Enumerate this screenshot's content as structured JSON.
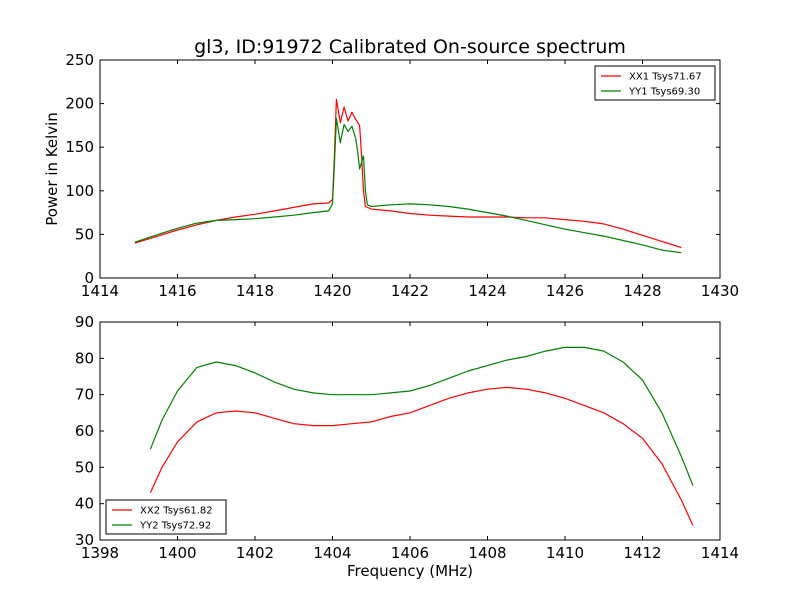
{
  "figure": {
    "title": "gl3, ID:91972 Calibrated On-source spectrum",
    "ylabel": "Power in Kelvin",
    "xlabel": "Frequency (MHz)"
  },
  "chart_data": [
    {
      "type": "line",
      "xlim": [
        1414,
        1430
      ],
      "ylim": [
        0,
        250
      ],
      "xticks": [
        1414,
        1416,
        1418,
        1420,
        1422,
        1424,
        1426,
        1428,
        1430
      ],
      "yticks": [
        0,
        50,
        100,
        150,
        200,
        250
      ],
      "legend_position": "top-right",
      "series": [
        {
          "name": "XX1 Tsys71.67",
          "color": "#ff0000",
          "points": [
            [
              1414.9,
              40
            ],
            [
              1415.5,
              48
            ],
            [
              1416,
              55
            ],
            [
              1416.5,
              61
            ],
            [
              1417,
              66
            ],
            [
              1417.5,
              70
            ],
            [
              1418,
              73
            ],
            [
              1418.5,
              77
            ],
            [
              1419,
              81
            ],
            [
              1419.5,
              85
            ],
            [
              1419.9,
              86
            ],
            [
              1420.0,
              90
            ],
            [
              1420.05,
              140
            ],
            [
              1420.1,
              205
            ],
            [
              1420.2,
              178
            ],
            [
              1420.3,
              196
            ],
            [
              1420.4,
              180
            ],
            [
              1420.5,
              190
            ],
            [
              1420.6,
              182
            ],
            [
              1420.7,
              175
            ],
            [
              1420.75,
              140
            ],
            [
              1420.8,
              100
            ],
            [
              1420.85,
              82
            ],
            [
              1421,
              79
            ],
            [
              1421.5,
              77
            ],
            [
              1422,
              74
            ],
            [
              1422.5,
              72
            ],
            [
              1423,
              71
            ],
            [
              1423.5,
              70
            ],
            [
              1424,
              70
            ],
            [
              1424.5,
              70
            ],
            [
              1425,
              69
            ],
            [
              1425.5,
              69
            ],
            [
              1426,
              67
            ],
            [
              1426.5,
              65
            ],
            [
              1427,
              62
            ],
            [
              1427.5,
              56
            ],
            [
              1428,
              49
            ],
            [
              1428.5,
              42
            ],
            [
              1429,
              35
            ]
          ]
        },
        {
          "name": "YY1 Tsys69.30",
          "color": "#008000",
          "points": [
            [
              1414.9,
              41
            ],
            [
              1415.5,
              50
            ],
            [
              1416,
              57
            ],
            [
              1416.5,
              63
            ],
            [
              1417,
              66
            ],
            [
              1417.5,
              67
            ],
            [
              1418,
              68
            ],
            [
              1418.5,
              70
            ],
            [
              1419,
              72
            ],
            [
              1419.5,
              75
            ],
            [
              1419.9,
              77
            ],
            [
              1420.0,
              85
            ],
            [
              1420.05,
              130
            ],
            [
              1420.1,
              183
            ],
            [
              1420.2,
              155
            ],
            [
              1420.3,
              176
            ],
            [
              1420.4,
              168
            ],
            [
              1420.5,
              174
            ],
            [
              1420.6,
              160
            ],
            [
              1420.65,
              145
            ],
            [
              1420.7,
              125
            ],
            [
              1420.8,
              140
            ],
            [
              1420.85,
              100
            ],
            [
              1420.9,
              84
            ],
            [
              1421,
              82
            ],
            [
              1421.5,
              84
            ],
            [
              1422,
              85
            ],
            [
              1422.5,
              84
            ],
            [
              1423,
              82
            ],
            [
              1423.5,
              79
            ],
            [
              1424,
              75
            ],
            [
              1424.5,
              71
            ],
            [
              1425,
              66
            ],
            [
              1425.5,
              61
            ],
            [
              1426,
              56
            ],
            [
              1426.5,
              52
            ],
            [
              1427,
              48
            ],
            [
              1427.5,
              43
            ],
            [
              1428,
              38
            ],
            [
              1428.5,
              32
            ],
            [
              1429,
              29
            ]
          ]
        }
      ]
    },
    {
      "type": "line",
      "xlim": [
        1398,
        1414
      ],
      "ylim": [
        30,
        90
      ],
      "xticks": [
        1398,
        1400,
        1402,
        1404,
        1406,
        1408,
        1410,
        1412,
        1414
      ],
      "yticks": [
        30,
        40,
        50,
        60,
        70,
        80,
        90
      ],
      "legend_position": "bottom-left",
      "series": [
        {
          "name": "XX2 Tsys61.82",
          "color": "#ff0000",
          "points": [
            [
              1399.3,
              43
            ],
            [
              1399.6,
              50
            ],
            [
              1400,
              57
            ],
            [
              1400.5,
              62.5
            ],
            [
              1401,
              65
            ],
            [
              1401.5,
              65.5
            ],
            [
              1402,
              65
            ],
            [
              1402.5,
              63.5
            ],
            [
              1403,
              62
            ],
            [
              1403.5,
              61.5
            ],
            [
              1404,
              61.5
            ],
            [
              1404.5,
              62
            ],
            [
              1405,
              62.5
            ],
            [
              1405.5,
              64
            ],
            [
              1406,
              65
            ],
            [
              1406.5,
              67
            ],
            [
              1407,
              69
            ],
            [
              1407.5,
              70.5
            ],
            [
              1408,
              71.5
            ],
            [
              1408.5,
              72
            ],
            [
              1409,
              71.5
            ],
            [
              1409.5,
              70.5
            ],
            [
              1410,
              69
            ],
            [
              1410.5,
              67
            ],
            [
              1411,
              65
            ],
            [
              1411.5,
              62
            ],
            [
              1412,
              58
            ],
            [
              1412.5,
              51
            ],
            [
              1413,
              41
            ],
            [
              1413.3,
              34
            ]
          ]
        },
        {
          "name": "YY2 Tsys72.92",
          "color": "#008000",
          "points": [
            [
              1399.3,
              55
            ],
            [
              1399.6,
              63
            ],
            [
              1400,
              71
            ],
            [
              1400.5,
              77.5
            ],
            [
              1401,
              79
            ],
            [
              1401.5,
              78
            ],
            [
              1402,
              76
            ],
            [
              1402.5,
              73.5
            ],
            [
              1403,
              71.5
            ],
            [
              1403.5,
              70.5
            ],
            [
              1404,
              70
            ],
            [
              1404.5,
              70
            ],
            [
              1405,
              70
            ],
            [
              1405.5,
              70.5
            ],
            [
              1406,
              71
            ],
            [
              1406.5,
              72.5
            ],
            [
              1407,
              74.5
            ],
            [
              1407.5,
              76.5
            ],
            [
              1408,
              78
            ],
            [
              1408.5,
              79.5
            ],
            [
              1409,
              80.5
            ],
            [
              1409.5,
              82
            ],
            [
              1410,
              83
            ],
            [
              1410.5,
              83
            ],
            [
              1411,
              82
            ],
            [
              1411.5,
              79
            ],
            [
              1412,
              74
            ],
            [
              1412.5,
              65
            ],
            [
              1413,
              53
            ],
            [
              1413.3,
              45
            ]
          ]
        }
      ]
    }
  ]
}
